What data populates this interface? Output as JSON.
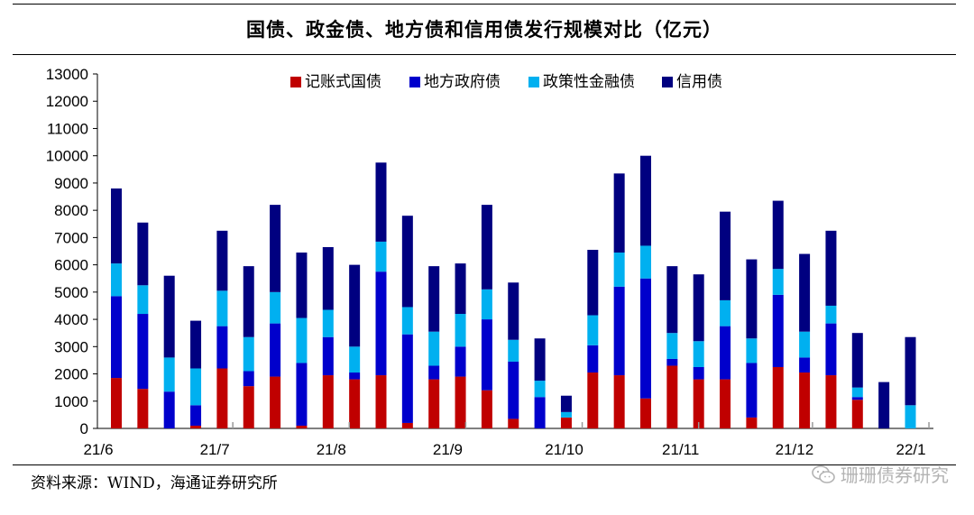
{
  "title": "国债、政金债、地方债和信用债发行规模对比（亿元）",
  "source": "资料来源：WIND，海通证券研究所",
  "watermark": "珊珊债券研究",
  "colors": {
    "treasury": "#c00000",
    "local": "#0000cc",
    "policy": "#00b0f0",
    "credit": "#000080"
  },
  "chart_data": {
    "type": "bar",
    "stacked": true,
    "title": "国债、政金债、地方债和信用债发行规模对比（亿元）",
    "xlabel": "",
    "ylabel": "",
    "ylim": [
      0,
      13000
    ],
    "yticks": [
      0,
      1000,
      2000,
      3000,
      4000,
      5000,
      6000,
      7000,
      8000,
      9000,
      10000,
      11000,
      12000,
      13000
    ],
    "xtick_labels": [
      {
        "label": "21/6",
        "at": 0
      },
      {
        "label": "21/7",
        "at": 4.4
      },
      {
        "label": "21/8",
        "at": 8.8
      },
      {
        "label": "21/9",
        "at": 13.2
      },
      {
        "label": "21/10",
        "at": 17.6
      },
      {
        "label": "21/11",
        "at": 22.0
      },
      {
        "label": "21/12",
        "at": 26.3
      },
      {
        "label": "22/1",
        "at": 30.7
      }
    ],
    "grid": false,
    "legend_position": "top",
    "n_bars": 31,
    "series": [
      {
        "name": "记账式国债",
        "key": "treasury",
        "values": [
          1850,
          1450,
          0,
          100,
          2200,
          1550,
          1900,
          100,
          1950,
          1800,
          1950,
          200,
          1800,
          1900,
          1400,
          350,
          0,
          400,
          2050,
          1950,
          1100,
          2300,
          1800,
          1800,
          400,
          2250,
          2050,
          1950,
          1050,
          0,
          0
        ]
      },
      {
        "name": "地方政府债",
        "key": "local",
        "values": [
          3000,
          2750,
          1350,
          750,
          1550,
          550,
          1950,
          2300,
          1400,
          250,
          3800,
          3250,
          500,
          1100,
          2600,
          2100,
          1150,
          0,
          1000,
          3250,
          4400,
          250,
          450,
          1950,
          2000,
          2650,
          550,
          1900,
          100,
          0,
          0
        ]
      },
      {
        "name": "政策性金融债",
        "key": "policy",
        "values": [
          1200,
          1050,
          1250,
          1350,
          1300,
          1250,
          1150,
          1650,
          1000,
          950,
          1100,
          1000,
          1250,
          1200,
          1100,
          800,
          600,
          200,
          1100,
          1250,
          1200,
          950,
          950,
          950,
          900,
          950,
          950,
          650,
          350,
          0,
          850
        ]
      },
      {
        "name": "信用债",
        "key": "credit",
        "values": [
          2750,
          2300,
          3000,
          1750,
          2200,
          2600,
          3200,
          2400,
          2300,
          3000,
          2900,
          3350,
          2400,
          1850,
          3100,
          2100,
          1550,
          600,
          2400,
          2900,
          3300,
          2450,
          2450,
          3250,
          2900,
          2500,
          2850,
          2750,
          2000,
          1700,
          2500
        ]
      }
    ]
  }
}
